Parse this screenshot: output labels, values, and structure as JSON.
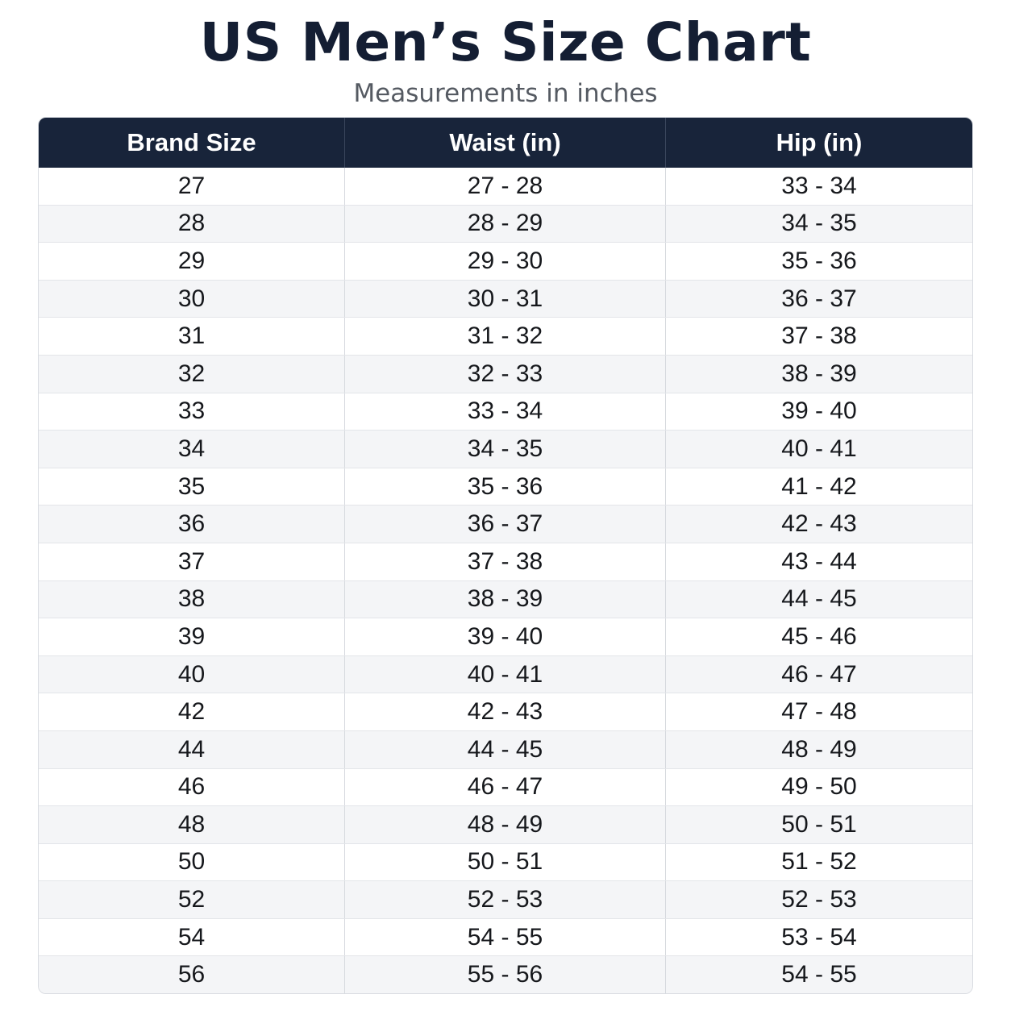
{
  "title": "US Men’s Size Chart",
  "subtitle": "Measurements in inches",
  "table": {
    "headers": [
      "Brand Size",
      "Waist (in)",
      "Hip (in)"
    ],
    "rows": [
      [
        "27",
        "27 - 28",
        "33 - 34"
      ],
      [
        "28",
        "28 - 29",
        "34 - 35"
      ],
      [
        "29",
        "29 - 30",
        "35 - 36"
      ],
      [
        "30",
        "30 - 31",
        "36 - 37"
      ],
      [
        "31",
        "31 - 32",
        "37 - 38"
      ],
      [
        "32",
        "32 - 33",
        "38 - 39"
      ],
      [
        "33",
        "33 - 34",
        "39 - 40"
      ],
      [
        "34",
        "34 - 35",
        "40 - 41"
      ],
      [
        "35",
        "35 - 36",
        "41 - 42"
      ],
      [
        "36",
        "36 - 37",
        "42 - 43"
      ],
      [
        "37",
        "37 - 38",
        "43 - 44"
      ],
      [
        "38",
        "38 - 39",
        "44 - 45"
      ],
      [
        "39",
        "39 - 40",
        "45 - 46"
      ],
      [
        "40",
        "40 - 41",
        "46 - 47"
      ],
      [
        "42",
        "42 - 43",
        "47 - 48"
      ],
      [
        "44",
        "44 - 45",
        "48 - 49"
      ],
      [
        "46",
        "46 - 47",
        "49 - 50"
      ],
      [
        "48",
        "48 - 49",
        "50 - 51"
      ],
      [
        "50",
        "50 - 51",
        "51 - 52"
      ],
      [
        "52",
        "52 - 53",
        "52 - 53"
      ],
      [
        "54",
        "54 - 55",
        "53 - 54"
      ],
      [
        "56",
        "55 - 56",
        "54 - 55"
      ]
    ]
  },
  "colors": {
    "header_background": "#18243a",
    "title_text": "#141e33",
    "stripe": "#f4f5f7"
  }
}
